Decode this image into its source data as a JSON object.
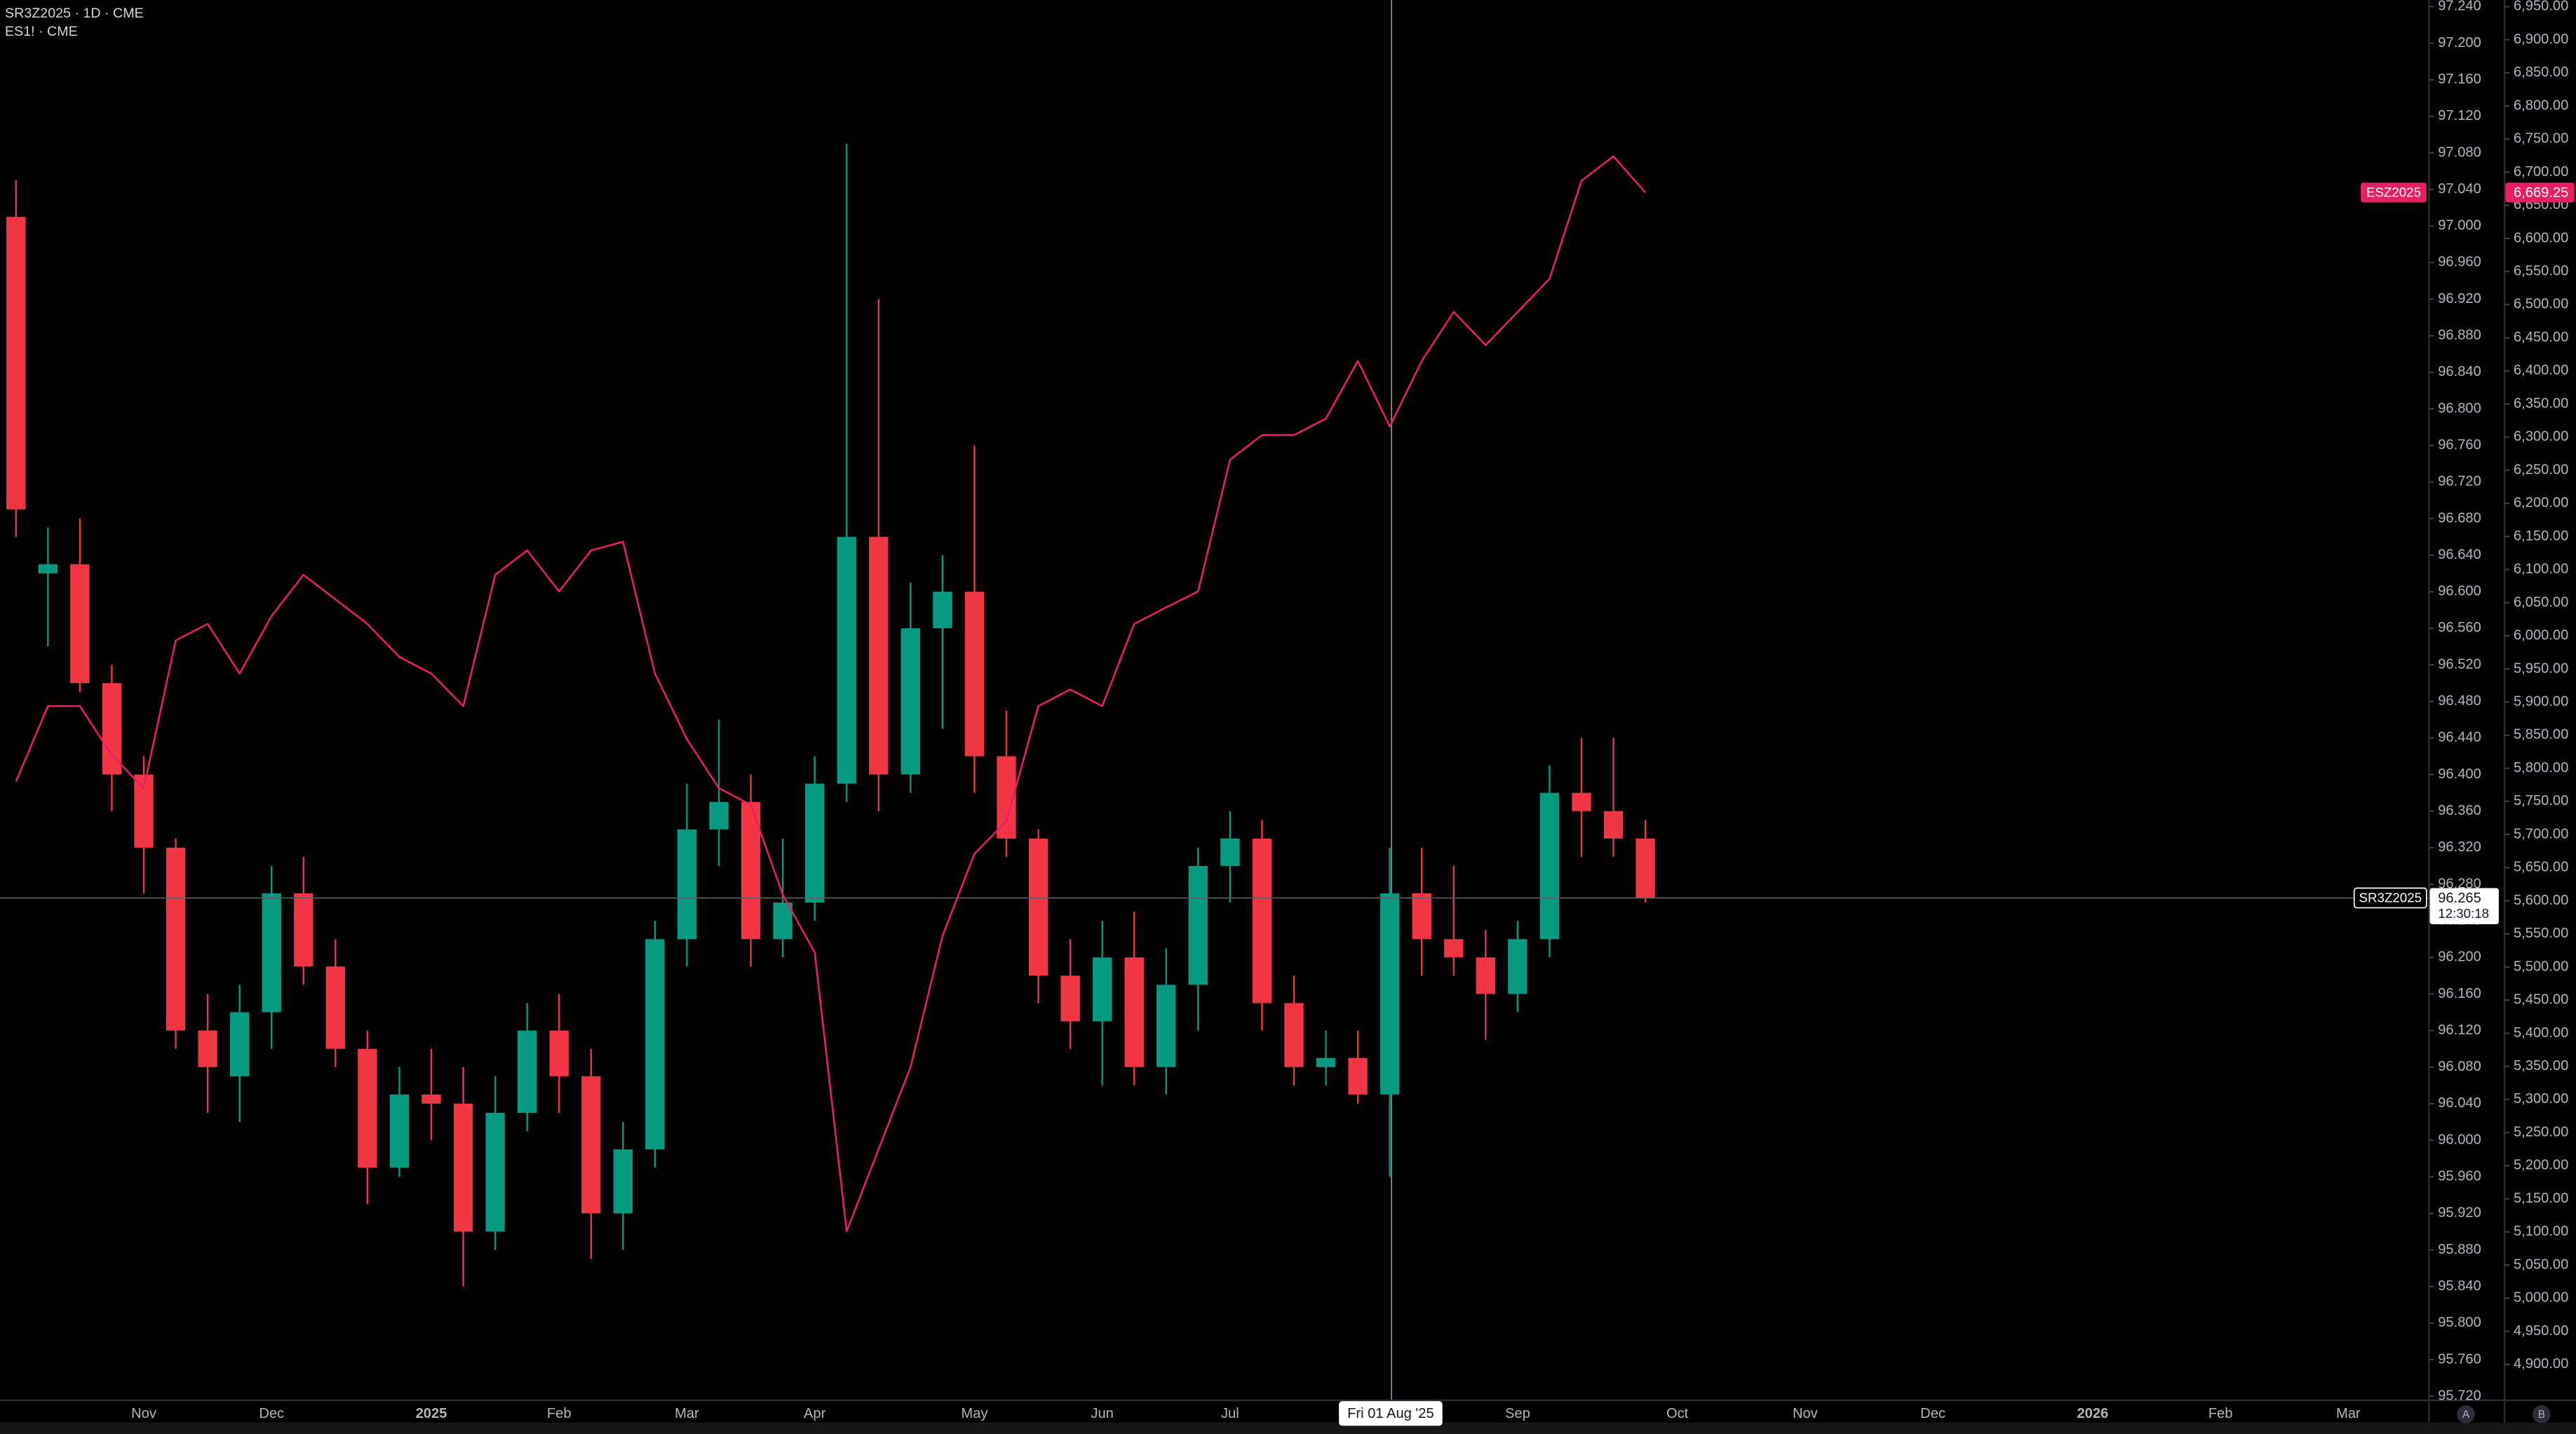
{
  "chart_data": {
    "type": "candlestick",
    "title": "SR3Z2025 · 1D · CME",
    "subtitle": "ES1! · CME",
    "countdown": "12:30:18",
    "crosshair_label": "Fri 01 Aug '25",
    "scale_buttons": [
      "A",
      "B"
    ],
    "grid": false,
    "categories": [
      null,
      null,
      null,
      null,
      "Nov",
      null,
      null,
      null,
      "Dec",
      null,
      null,
      null,
      null,
      "2025",
      null,
      null,
      null,
      "Feb",
      null,
      null,
      null,
      "Mar",
      null,
      null,
      null,
      "Apr",
      null,
      null,
      null,
      null,
      "May",
      null,
      null,
      null,
      "Jun",
      null,
      null,
      null,
      "Jul",
      null,
      null,
      null,
      null,
      null,
      null,
      null,
      null,
      "Sep",
      null,
      null,
      null,
      null,
      "Oct",
      null,
      null,
      null,
      "Nov",
      null,
      null,
      null,
      "Dec",
      null,
      null,
      null,
      null,
      "2026",
      null,
      null,
      null,
      "Feb",
      null,
      null,
      null,
      "Mar",
      null,
      null
    ],
    "ylim": [
      95.72,
      97.24
    ],
    "yticks": [
      {
        "value": 95.72,
        "label": "95.720"
      },
      {
        "value": 95.76,
        "label": "95.760"
      },
      {
        "value": 95.8,
        "label": "95.800"
      },
      {
        "value": 95.84,
        "label": "95.840"
      },
      {
        "value": 95.88,
        "label": "95.880"
      },
      {
        "value": 95.92,
        "label": "95.920"
      },
      {
        "value": 95.96,
        "label": "95.960"
      },
      {
        "value": 96.0,
        "label": "96.000"
      },
      {
        "value": 96.04,
        "label": "96.040"
      },
      {
        "value": 96.08,
        "label": "96.080"
      },
      {
        "value": 96.12,
        "label": "96.120"
      },
      {
        "value": 96.16,
        "label": "96.160"
      },
      {
        "value": 96.2,
        "label": "96.200"
      },
      {
        "value": 96.24,
        "label": "96.240"
      },
      {
        "value": 96.28,
        "label": "96.280"
      },
      {
        "value": 96.32,
        "label": "96.320"
      },
      {
        "value": 96.36,
        "label": "96.360"
      },
      {
        "value": 96.4,
        "label": "96.400"
      },
      {
        "value": 96.44,
        "label": "96.440"
      },
      {
        "value": 96.48,
        "label": "96.480"
      },
      {
        "value": 96.52,
        "label": "96.520"
      },
      {
        "value": 96.56,
        "label": "96.560"
      },
      {
        "value": 96.6,
        "label": "96.600"
      },
      {
        "value": 96.64,
        "label": "96.640"
      },
      {
        "value": 96.68,
        "label": "96.680"
      },
      {
        "value": 96.72,
        "label": "96.720"
      },
      {
        "value": 96.76,
        "label": "96.760"
      },
      {
        "value": 96.8,
        "label": "96.800"
      },
      {
        "value": 96.84,
        "label": "96.840"
      },
      {
        "value": 96.88,
        "label": "96.880"
      },
      {
        "value": 96.92,
        "label": "96.920"
      },
      {
        "value": 96.96,
        "label": "96.960"
      },
      {
        "value": 97.0,
        "label": "97.000"
      },
      {
        "value": 97.04,
        "label": "97.040"
      },
      {
        "value": 97.08,
        "label": "97.080"
      },
      {
        "value": 97.12,
        "label": "97.120"
      },
      {
        "value": 97.16,
        "label": "97.160"
      },
      {
        "value": 97.2,
        "label": "97.200"
      },
      {
        "value": 97.24,
        "label": "97.240"
      }
    ],
    "y2lim": [
      4852,
      6950
    ],
    "y2ticks": [
      {
        "value": 4900,
        "label": "4,900.00"
      },
      {
        "value": 4950,
        "label": "4,950.00"
      },
      {
        "value": 5000,
        "label": "5,000.00"
      },
      {
        "value": 5050,
        "label": "5,050.00"
      },
      {
        "value": 5100,
        "label": "5,100.00"
      },
      {
        "value": 5150,
        "label": "5,150.00"
      },
      {
        "value": 5200,
        "label": "5,200.00"
      },
      {
        "value": 5250,
        "label": "5,250.00"
      },
      {
        "value": 5300,
        "label": "5,300.00"
      },
      {
        "value": 5350,
        "label": "5,350.00"
      },
      {
        "value": 5400,
        "label": "5,400.00"
      },
      {
        "value": 5450,
        "label": "5,450.00"
      },
      {
        "value": 5500,
        "label": "5,500.00"
      },
      {
        "value": 5550,
        "label": "5,550.00"
      },
      {
        "value": 5600,
        "label": "5,600.00"
      },
      {
        "value": 5650,
        "label": "5,650.00"
      },
      {
        "value": 5700,
        "label": "5,700.00"
      },
      {
        "value": 5750,
        "label": "5,750.00"
      },
      {
        "value": 5800,
        "label": "5,800.00"
      },
      {
        "value": 5850,
        "label": "5,850.00"
      },
      {
        "value": 5900,
        "label": "5,900.00"
      },
      {
        "value": 5950,
        "label": "5,950.00"
      },
      {
        "value": 6000,
        "label": "6,000.00"
      },
      {
        "value": 6050,
        "label": "6,050.00"
      },
      {
        "value": 6100,
        "label": "6,100.00"
      },
      {
        "value": 6150,
        "label": "6,150.00"
      },
      {
        "value": 6200,
        "label": "6,200.00"
      },
      {
        "value": 6250,
        "label": "6,250.00"
      },
      {
        "value": 6300,
        "label": "6,300.00"
      },
      {
        "value": 6350,
        "label": "6,350.00"
      },
      {
        "value": 6400,
        "label": "6,400.00"
      },
      {
        "value": 6450,
        "label": "6,450.00"
      },
      {
        "value": 6500,
        "label": "6,500.00"
      },
      {
        "value": 6550,
        "label": "6,550.00"
      },
      {
        "value": 6600,
        "label": "6,600.00"
      },
      {
        "value": 6650,
        "label": "6,650.00"
      },
      {
        "value": 6700,
        "label": "6,700.00"
      },
      {
        "value": 6750,
        "label": "6,750.00"
      },
      {
        "value": 6800,
        "label": "6,800.00"
      },
      {
        "value": 6850,
        "label": "6,850.00"
      },
      {
        "value": 6900,
        "label": "6,900.00"
      },
      {
        "value": 6950,
        "label": "6,950.00"
      }
    ],
    "series": [
      {
        "name": "SR3Z2025",
        "type": "candlestick",
        "up_color": "#089981",
        "down_color": "#f23645",
        "open": [
          97.01,
          96.62,
          96.63,
          96.5,
          96.4,
          96.32,
          96.12,
          96.07,
          96.14,
          96.27,
          96.19,
          96.1,
          95.97,
          96.05,
          96.04,
          95.9,
          96.03,
          96.12,
          96.07,
          95.92,
          95.99,
          96.22,
          96.34,
          96.37,
          96.22,
          96.26,
          96.39,
          96.66,
          96.4,
          96.56,
          96.6,
          96.42,
          96.33,
          96.18,
          96.13,
          96.2,
          96.08,
          96.17,
          96.3,
          96.33,
          96.15,
          96.08,
          96.09,
          96.05,
          96.27,
          96.22,
          96.2,
          96.16,
          96.22,
          96.38,
          96.36,
          96.33,
          null,
          null,
          null,
          null,
          null,
          null,
          null,
          null,
          null,
          null,
          null,
          null,
          null,
          null,
          null,
          null,
          null,
          null,
          null,
          null,
          null,
          null,
          null,
          null
        ],
        "high": [
          97.05,
          96.67,
          96.68,
          96.52,
          96.42,
          96.33,
          96.16,
          96.17,
          96.3,
          96.31,
          96.22,
          96.12,
          96.08,
          96.1,
          96.08,
          96.07,
          96.15,
          96.16,
          96.1,
          96.02,
          96.24,
          96.39,
          96.46,
          96.4,
          96.33,
          96.42,
          97.09,
          96.92,
          96.61,
          96.64,
          96.76,
          96.47,
          96.34,
          96.22,
          96.24,
          96.25,
          96.21,
          96.32,
          96.36,
          96.35,
          96.18,
          96.12,
          96.12,
          96.32,
          96.32,
          96.3,
          96.23,
          96.24,
          96.41,
          96.44,
          96.44,
          96.35,
          null,
          null,
          null,
          null,
          null,
          null,
          null,
          null,
          null,
          null,
          null,
          null,
          null,
          null,
          null,
          null,
          null,
          null,
          null,
          null,
          null,
          null,
          null,
          null
        ],
        "low": [
          96.66,
          96.54,
          96.49,
          96.36,
          96.27,
          96.1,
          96.03,
          96.02,
          96.1,
          96.17,
          96.08,
          95.93,
          95.96,
          96.0,
          95.84,
          95.88,
          96.01,
          96.03,
          95.87,
          95.88,
          95.97,
          96.19,
          96.3,
          96.19,
          96.2,
          96.24,
          96.37,
          96.36,
          96.38,
          96.45,
          96.38,
          96.31,
          96.15,
          96.1,
          96.06,
          96.06,
          96.05,
          96.12,
          96.26,
          96.12,
          96.06,
          96.06,
          96.04,
          95.96,
          96.18,
          96.18,
          96.11,
          96.14,
          96.2,
          96.31,
          96.31,
          96.26,
          null,
          null,
          null,
          null,
          null,
          null,
          null,
          null,
          null,
          null,
          null,
          null,
          null,
          null,
          null,
          null,
          null,
          null,
          null,
          null,
          null,
          null,
          null,
          null
        ],
        "close": [
          96.69,
          96.63,
          96.5,
          96.4,
          96.32,
          96.12,
          96.08,
          96.14,
          96.27,
          96.19,
          96.1,
          95.97,
          96.05,
          96.04,
          95.9,
          96.03,
          96.12,
          96.07,
          95.92,
          95.99,
          96.22,
          96.34,
          96.37,
          96.22,
          96.26,
          96.39,
          96.66,
          96.4,
          96.56,
          96.6,
          96.42,
          96.33,
          96.18,
          96.13,
          96.2,
          96.08,
          96.17,
          96.3,
          96.33,
          96.15,
          96.08,
          96.09,
          96.05,
          96.27,
          96.22,
          96.2,
          96.16,
          96.22,
          96.38,
          96.36,
          96.33,
          96.265,
          null,
          null,
          null,
          null,
          null,
          null,
          null,
          null,
          null,
          null,
          null,
          null,
          null,
          null,
          null,
          null,
          null,
          null,
          null,
          null,
          null,
          null,
          null,
          null
        ]
      },
      {
        "name": "ESZ2025",
        "type": "line",
        "axis": "y2",
        "color": "#e91e63",
        "values": [
          5780,
          5894,
          5894,
          5820,
          5770,
          5993,
          6018,
          5943,
          6030,
          6092,
          6055,
          6018,
          5968,
          5943,
          5894,
          6092,
          6129,
          6067,
          6129,
          6142,
          5943,
          5844,
          5770,
          5745,
          5609,
          5522,
          5101,
          5225,
          5349,
          5547,
          5671,
          5720,
          5894,
          5919,
          5894,
          6018,
          6043,
          6067,
          6266,
          6303,
          6303,
          6328,
          6415,
          6316,
          6415,
          6489,
          6439,
          6489,
          6539,
          6687,
          6724,
          6669.25,
          null,
          null,
          null,
          null,
          null,
          null,
          null,
          null,
          null,
          null,
          null,
          null,
          null,
          null,
          null,
          null,
          null,
          null,
          null,
          null,
          null,
          null,
          null,
          null
        ],
        "value_labels": [
          null,
          null,
          null,
          null,
          null,
          null,
          null,
          null,
          null,
          null,
          null,
          null,
          null,
          null,
          null,
          null,
          null,
          null,
          null,
          null,
          null,
          null,
          null,
          null,
          null,
          null,
          null,
          null,
          null,
          null,
          null,
          null,
          null,
          null,
          null,
          null,
          null,
          null,
          null,
          null,
          null,
          null,
          null,
          null,
          null,
          null,
          null,
          null,
          null,
          null,
          null,
          "6,669.25",
          null,
          null,
          null,
          null,
          null,
          null,
          null,
          null,
          null,
          null,
          null,
          null,
          null,
          null,
          null,
          null,
          null,
          null,
          null,
          null,
          null,
          null,
          null,
          null
        ]
      }
    ]
  }
}
